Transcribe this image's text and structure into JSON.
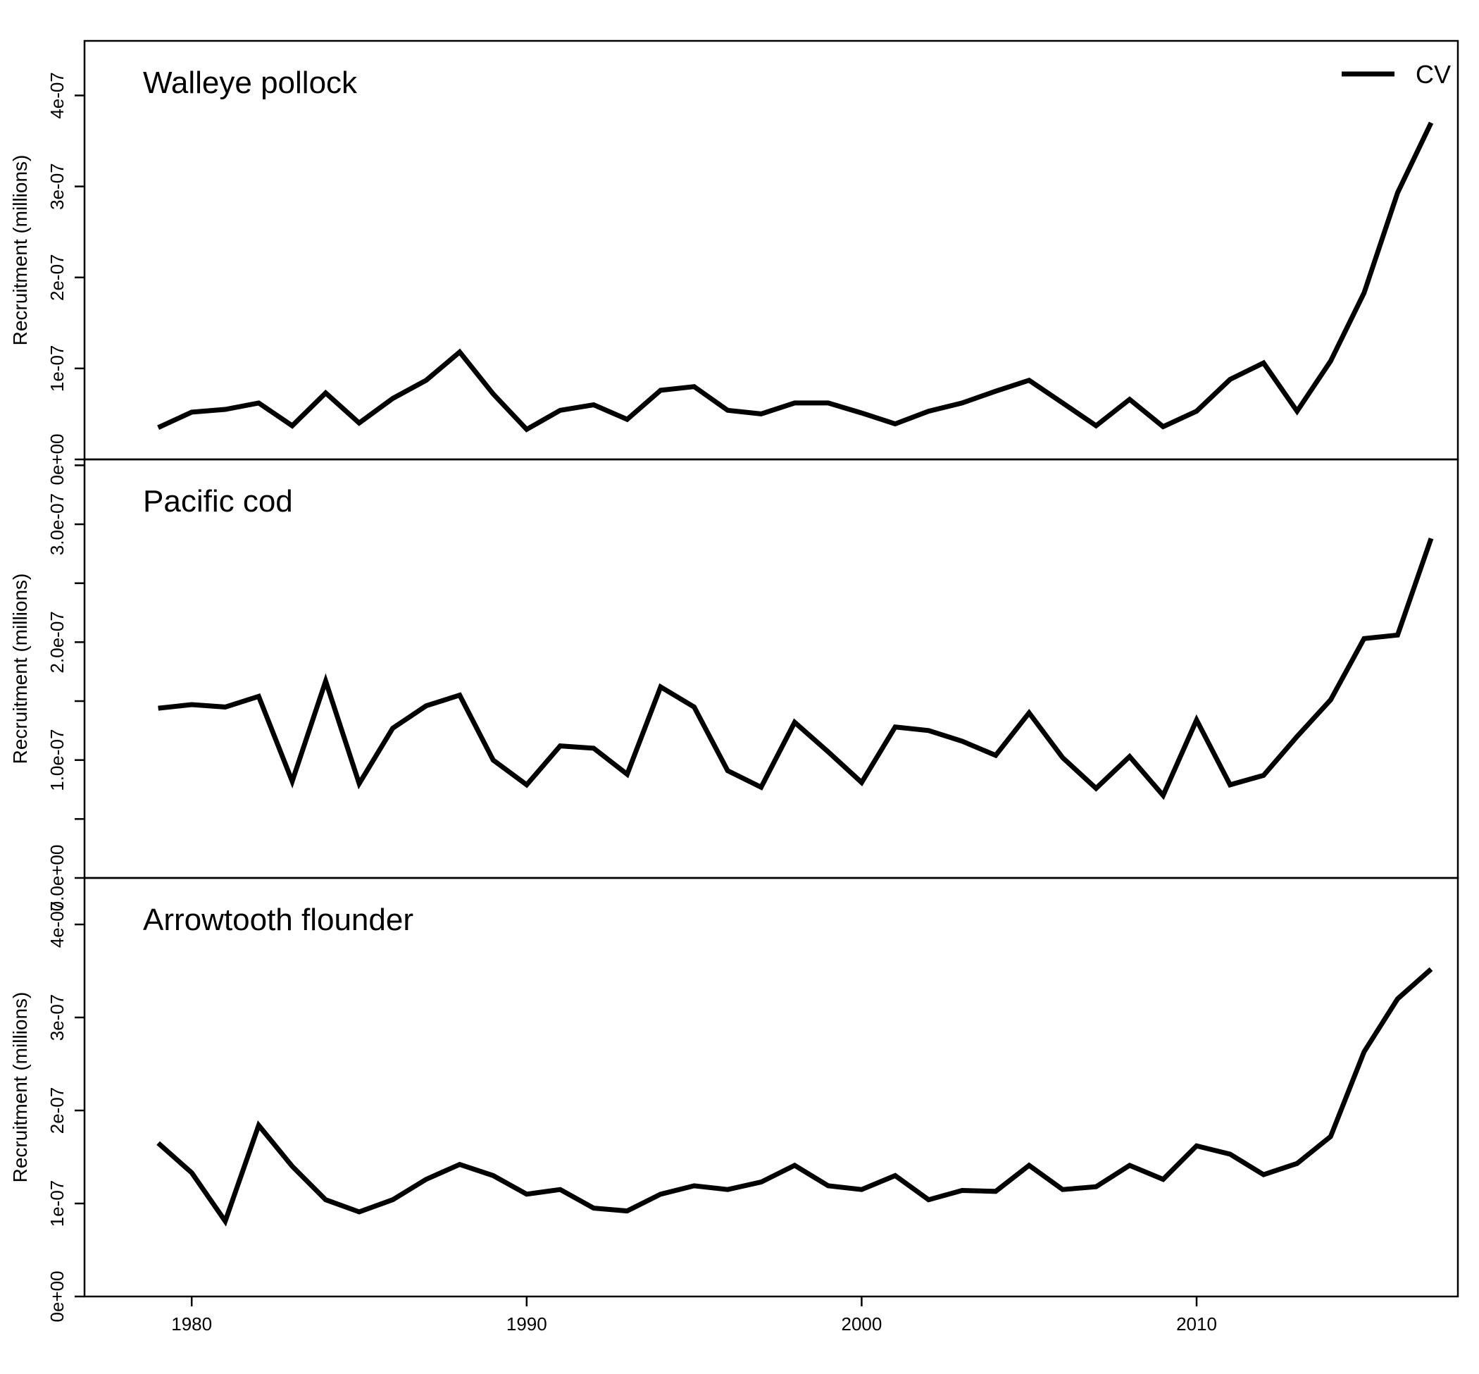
{
  "legend": {
    "label": "CV",
    "color": "#000000"
  },
  "x_ticks": [
    1980,
    1990,
    2000,
    2010
  ],
  "chart_data": [
    {
      "type": "line",
      "title": "Walleye pollock",
      "ylabel": "Recruitment (millions)",
      "ylim": [
        0,
        4.6e-07
      ],
      "yticks": [
        0,
        1e-07,
        2e-07,
        3e-07,
        4e-07
      ],
      "ytick_labels": [
        "0e+00",
        "1e-07",
        "2e-07",
        "3e-07",
        "4e-07"
      ],
      "xlim": [
        1976.8,
        2017.8
      ],
      "series": [
        {
          "name": "CV",
          "x": [
            1979,
            1980,
            1981,
            1982,
            1983,
            1984,
            1985,
            1986,
            1987,
            1988,
            1989,
            1990,
            1991,
            1992,
            1993,
            1994,
            1995,
            1996,
            1997,
            1998,
            1999,
            2000,
            2001,
            2002,
            2003,
            2004,
            2005,
            2006,
            2007,
            2008,
            2009,
            2010,
            2011,
            2012,
            2013,
            2014,
            2015,
            2016,
            2017
          ],
          "values": [
            3.5e-08,
            5.2e-08,
            5.5e-08,
            6.2e-08,
            3.7e-08,
            7.3e-08,
            4e-08,
            6.7e-08,
            8.7e-08,
            1.18e-07,
            7.2e-08,
            3.3e-08,
            5.4e-08,
            6e-08,
            4.4e-08,
            7.6e-08,
            8e-08,
            5.4e-08,
            5e-08,
            6.2e-08,
            6.2e-08,
            5.1e-08,
            3.9e-08,
            5.3e-08,
            6.2e-08,
            7.5e-08,
            8.7e-08,
            6.2e-08,
            3.7e-08,
            6.6e-08,
            3.6e-08,
            5.3e-08,
            8.8e-08,
            1.06e-07,
            5.3e-08,
            1.08e-07,
            1.83e-07,
            2.93e-07,
            3.7e-07
          ]
        }
      ]
    },
    {
      "type": "line",
      "title": "Pacific cod",
      "ylabel": "Recruitment (millions)",
      "ylim": [
        0,
        3.55e-07
      ],
      "yticks": [
        0,
        5e-08,
        1e-07,
        1.5e-07,
        2e-07,
        2.5e-07,
        3e-07,
        3.5e-07
      ],
      "ytick_labels": [
        "0.0e+00",
        "",
        "1.0e-07",
        "",
        "2.0e-07",
        "",
        "3.0e-07",
        ""
      ],
      "xlim": [
        1976.8,
        2017.8
      ],
      "series": [
        {
          "name": "CV",
          "x": [
            1979,
            1980,
            1981,
            1982,
            1983,
            1984,
            1985,
            1986,
            1987,
            1988,
            1989,
            1990,
            1991,
            1992,
            1993,
            1994,
            1995,
            1996,
            1997,
            1998,
            1999,
            2000,
            2001,
            2002,
            2003,
            2004,
            2005,
            2006,
            2007,
            2008,
            2009,
            2010,
            2011,
            2012,
            2013,
            2014,
            2015,
            2016,
            2017
          ],
          "values": [
            1.44e-07,
            1.47e-07,
            1.45e-07,
            1.54e-07,
            8.2e-08,
            1.67e-07,
            8e-08,
            1.27e-07,
            1.46e-07,
            1.55e-07,
            1e-07,
            7.9e-08,
            1.12e-07,
            1.1e-07,
            8.8e-08,
            1.62e-07,
            1.45e-07,
            9.1e-08,
            7.7e-08,
            1.32e-07,
            1.07e-07,
            8.1e-08,
            1.28e-07,
            1.25e-07,
            1.16e-07,
            1.04e-07,
            1.4e-07,
            1.02e-07,
            7.6e-08,
            1.03e-07,
            7e-08,
            1.34e-07,
            7.9e-08,
            8.7e-08,
            1.2e-07,
            1.51e-07,
            2.03e-07,
            2.06e-07,
            2.88e-07
          ]
        }
      ]
    },
    {
      "type": "line",
      "title": "Arrowtooth flounder",
      "ylabel": "Recruitment (millions)",
      "ylim": [
        0,
        4.5e-07
      ],
      "yticks": [
        0,
        1e-07,
        2e-07,
        3e-07,
        4e-07
      ],
      "ytick_labels": [
        "0e+00",
        "1e-07",
        "2e-07",
        "3e-07",
        "4e-07"
      ],
      "xlim": [
        1976.8,
        2017.8
      ],
      "series": [
        {
          "name": "CV",
          "x": [
            1979,
            1980,
            1981,
            1982,
            1983,
            1984,
            1985,
            1986,
            1987,
            1988,
            1989,
            1990,
            1991,
            1992,
            1993,
            1994,
            1995,
            1996,
            1997,
            1998,
            1999,
            2000,
            2001,
            2002,
            2003,
            2004,
            2005,
            2006,
            2007,
            2008,
            2009,
            2010,
            2011,
            2012,
            2013,
            2014,
            2015,
            2016,
            2017
          ],
          "values": [
            1.65e-07,
            1.33e-07,
            8.1e-08,
            1.84e-07,
            1.4e-07,
            1.04e-07,
            9.1e-08,
            1.04e-07,
            1.26e-07,
            1.42e-07,
            1.3e-07,
            1.1e-07,
            1.15e-07,
            9.5e-08,
            9.2e-08,
            1.1e-07,
            1.19e-07,
            1.15e-07,
            1.23e-07,
            1.41e-07,
            1.19e-07,
            1.15e-07,
            1.3e-07,
            1.04e-07,
            1.14e-07,
            1.13e-07,
            1.41e-07,
            1.15e-07,
            1.18e-07,
            1.41e-07,
            1.26e-07,
            1.62e-07,
            1.53e-07,
            1.31e-07,
            1.43e-07,
            1.72e-07,
            2.63e-07,
            3.2e-07,
            3.52e-07
          ]
        }
      ]
    }
  ]
}
